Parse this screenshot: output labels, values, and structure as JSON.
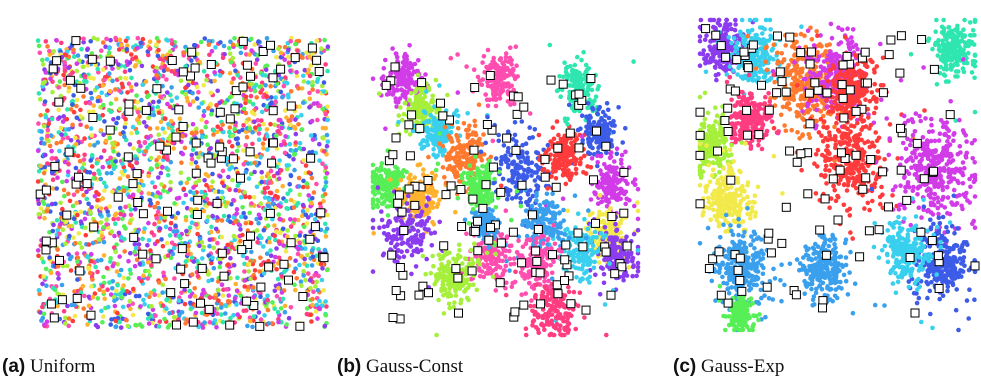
{
  "figure": {
    "captions": [
      {
        "label": "(a)",
        "text": "Uniform"
      },
      {
        "label": "(b)",
        "text": "Gauss-Const"
      },
      {
        "label": "(c)",
        "text": "Gauss-Exp"
      }
    ]
  },
  "palette": [
    "#ff3b3b",
    "#ff7a2e",
    "#ffb22e",
    "#f2e94a",
    "#a6ef3a",
    "#56ef56",
    "#2fe6b0",
    "#38d0ee",
    "#3aa0ee",
    "#3c5ce8",
    "#8a3cee",
    "#d23ce8",
    "#ff4db0",
    "#ff3d80"
  ],
  "marker": {
    "shape": "square",
    "fill": "#ffffff",
    "stroke": "#000000"
  },
  "chart_data": [
    {
      "type": "scatter",
      "title": "Uniform",
      "distribution": "uniform",
      "region": [
        0,
        1,
        0,
        1
      ],
      "point_count": 2800,
      "marker_count": 120,
      "axes_visible": false
    },
    {
      "type": "scatter",
      "title": "Gauss-Const",
      "distribution": "gaussian clusters, constant size",
      "clusters": [
        {
          "x": 0.12,
          "y": 0.88,
          "sd": 0.035,
          "color": "#d23ce8"
        },
        {
          "x": 0.18,
          "y": 0.78,
          "sd": 0.03,
          "color": "#a6ef3a"
        },
        {
          "x": 0.25,
          "y": 0.7,
          "sd": 0.03,
          "color": "#38d0ee"
        },
        {
          "x": 0.05,
          "y": 0.52,
          "sd": 0.035,
          "color": "#56ef56"
        },
        {
          "x": 0.18,
          "y": 0.48,
          "sd": 0.035,
          "color": "#ffb22e"
        },
        {
          "x": 0.12,
          "y": 0.35,
          "sd": 0.045,
          "color": "#8a3cee"
        },
        {
          "x": 0.35,
          "y": 0.62,
          "sd": 0.04,
          "color": "#ff7a2e"
        },
        {
          "x": 0.48,
          "y": 0.88,
          "sd": 0.035,
          "color": "#ff4db0"
        },
        {
          "x": 0.55,
          "y": 0.58,
          "sd": 0.05,
          "color": "#3c5ce8"
        },
        {
          "x": 0.72,
          "y": 0.62,
          "sd": 0.035,
          "color": "#ff3b3b"
        },
        {
          "x": 0.78,
          "y": 0.85,
          "sd": 0.035,
          "color": "#2fe6b0"
        },
        {
          "x": 0.85,
          "y": 0.7,
          "sd": 0.03,
          "color": "#3c5ce8"
        },
        {
          "x": 0.9,
          "y": 0.52,
          "sd": 0.035,
          "color": "#d23ce8"
        },
        {
          "x": 0.88,
          "y": 0.35,
          "sd": 0.035,
          "color": "#f2e94a"
        },
        {
          "x": 0.92,
          "y": 0.28,
          "sd": 0.035,
          "color": "#8a3cee"
        },
        {
          "x": 0.78,
          "y": 0.28,
          "sd": 0.04,
          "color": "#38d0ee"
        },
        {
          "x": 0.65,
          "y": 0.38,
          "sd": 0.04,
          "color": "#3aa0ee"
        },
        {
          "x": 0.62,
          "y": 0.25,
          "sd": 0.035,
          "color": "#ff4db0"
        },
        {
          "x": 0.68,
          "y": 0.08,
          "sd": 0.04,
          "color": "#ff3d80"
        },
        {
          "x": 0.45,
          "y": 0.28,
          "sd": 0.04,
          "color": "#ff4db0"
        },
        {
          "x": 0.3,
          "y": 0.2,
          "sd": 0.04,
          "color": "#a6ef3a"
        },
        {
          "x": 0.42,
          "y": 0.38,
          "sd": 0.02,
          "color": "#3aa0ee"
        },
        {
          "x": 0.4,
          "y": 0.5,
          "sd": 0.03,
          "color": "#56ef56"
        }
      ],
      "marker_count": 120,
      "axes_visible": false
    },
    {
      "type": "scatter",
      "title": "Gauss-Exp",
      "distribution": "gaussian clusters, exponential size",
      "clusters": [
        {
          "x": 0.08,
          "y": 0.92,
          "sd": 0.035,
          "color": "#8a3cee"
        },
        {
          "x": 0.2,
          "y": 0.88,
          "sd": 0.04,
          "color": "#38d0ee"
        },
        {
          "x": 0.38,
          "y": 0.8,
          "sd": 0.06,
          "color": "#ff7a2e"
        },
        {
          "x": 0.5,
          "y": 0.82,
          "sd": 0.05,
          "color": "#d23ce8"
        },
        {
          "x": 0.55,
          "y": 0.78,
          "sd": 0.04,
          "color": "#ff3b3b"
        },
        {
          "x": 0.92,
          "y": 0.9,
          "sd": 0.035,
          "color": "#2fe6b0"
        },
        {
          "x": 0.18,
          "y": 0.68,
          "sd": 0.035,
          "color": "#ff3d80"
        },
        {
          "x": 0.04,
          "y": 0.6,
          "sd": 0.035,
          "color": "#a6ef3a"
        },
        {
          "x": 0.1,
          "y": 0.42,
          "sd": 0.04,
          "color": "#f2e94a"
        },
        {
          "x": 0.55,
          "y": 0.55,
          "sd": 0.06,
          "color": "#ff3b3b"
        },
        {
          "x": 0.85,
          "y": 0.52,
          "sd": 0.07,
          "color": "#d23ce8"
        },
        {
          "x": 0.15,
          "y": 0.2,
          "sd": 0.05,
          "color": "#3aa0ee"
        },
        {
          "x": 0.15,
          "y": 0.05,
          "sd": 0.02,
          "color": "#56ef56"
        },
        {
          "x": 0.88,
          "y": 0.22,
          "sd": 0.05,
          "color": "#3c5ce8"
        },
        {
          "x": 0.75,
          "y": 0.25,
          "sd": 0.04,
          "color": "#38d0ee"
        },
        {
          "x": 0.45,
          "y": 0.2,
          "sd": 0.04,
          "color": "#3aa0ee"
        }
      ],
      "marker_count": 120,
      "axes_visible": false
    }
  ]
}
